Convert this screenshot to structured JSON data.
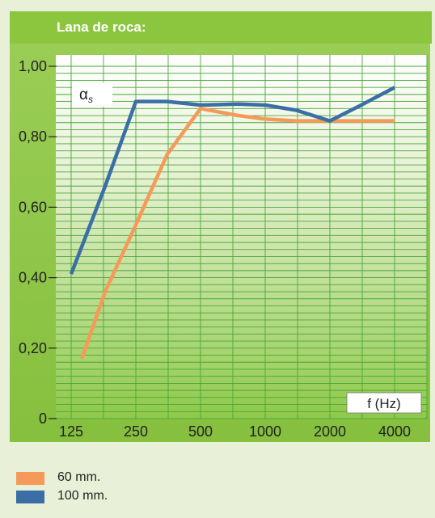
{
  "header": {
    "title": "Lana de roca:"
  },
  "chart_data": {
    "type": "line",
    "x": [
      125,
      250,
      500,
      1000,
      2000,
      4000
    ],
    "xlabel": "f (Hz)",
    "ylabel": "αs",
    "ylim": [
      0,
      1.0
    ],
    "ytick_labels": [
      "0",
      "0,20",
      "0,40",
      "0,60",
      "0,80",
      "1,00"
    ],
    "xtick_labels": [
      "125",
      "250",
      "500",
      "1000",
      "2000",
      "4000"
    ],
    "grid": true,
    "series": [
      {
        "name": "60 mm.",
        "color": "#f59a5a",
        "points": [
          [
            140,
            0.17
          ],
          [
            180,
            0.36
          ],
          [
            250,
            0.55
          ],
          [
            350,
            0.75
          ],
          [
            500,
            0.88
          ],
          [
            750,
            0.86
          ],
          [
            1000,
            0.85
          ],
          [
            1400,
            0.845
          ],
          [
            2000,
            0.845
          ],
          [
            2800,
            0.845
          ],
          [
            4000,
            0.845
          ]
        ]
      },
      {
        "name": "100 mm.",
        "color": "#3b6ea5",
        "points": [
          [
            125,
            0.41
          ],
          [
            180,
            0.66
          ],
          [
            250,
            0.9
          ],
          [
            350,
            0.9
          ],
          [
            500,
            0.89
          ],
          [
            750,
            0.893
          ],
          [
            1000,
            0.89
          ],
          [
            1400,
            0.875
          ],
          [
            2000,
            0.845
          ],
          [
            2800,
            0.89
          ],
          [
            4000,
            0.94
          ]
        ]
      }
    ]
  },
  "legend": [
    {
      "label": "60 mm.",
      "color": "#f59a5a"
    },
    {
      "label": "100 mm.",
      "color": "#3b6ea5"
    }
  ]
}
